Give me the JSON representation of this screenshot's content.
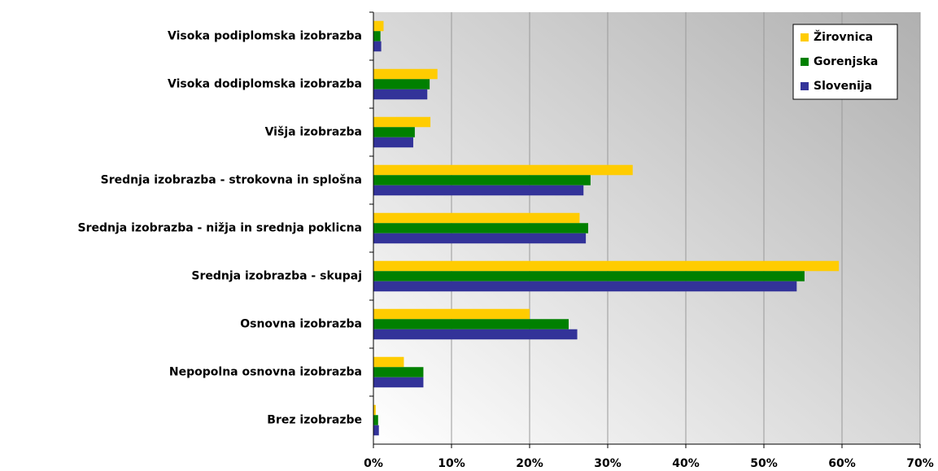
{
  "chart_data": {
    "type": "barh",
    "categories": [
      "Visoka podiplomska izobrazba",
      "Visoka  dodiplomska izobrazba",
      "Višja izobrazba",
      "Srednja izobrazba - strokovna in splošna",
      "Srednja izobrazba - nižja  in srednja poklicna",
      "Srednja izobrazba - skupaj",
      "Osnovna  izobrazba",
      "Nepopolna osnovna izobrazba",
      "Brez izobrazbe"
    ],
    "series": [
      {
        "name": "Žirovnica",
        "color": "#ffcc00",
        "values": [
          1.3,
          8.2,
          7.3,
          33.2,
          26.4,
          59.6,
          20.0,
          3.9,
          0.3
        ]
      },
      {
        "name": "Gorenjska",
        "color": "#008000",
        "values": [
          0.9,
          7.2,
          5.3,
          27.8,
          27.5,
          55.2,
          25.0,
          6.4,
          0.6
        ]
      },
      {
        "name": "Slovenija",
        "color": "#333399",
        "values": [
          1.0,
          6.9,
          5.1,
          26.9,
          27.2,
          54.2,
          26.1,
          6.4,
          0.7
        ]
      }
    ],
    "xlim": [
      0,
      70
    ],
    "xticks": [
      {
        "value": 0,
        "label": "0%"
      },
      {
        "value": 10,
        "label": "10%"
      },
      {
        "value": 20,
        "label": "20%"
      },
      {
        "value": 30,
        "label": "30%"
      },
      {
        "value": 40,
        "label": "40%"
      },
      {
        "value": 50,
        "label": "50%"
      },
      {
        "value": 60,
        "label": "60%"
      },
      {
        "value": 70,
        "label": "70%"
      }
    ],
    "grid": true,
    "legend": "upper right"
  }
}
